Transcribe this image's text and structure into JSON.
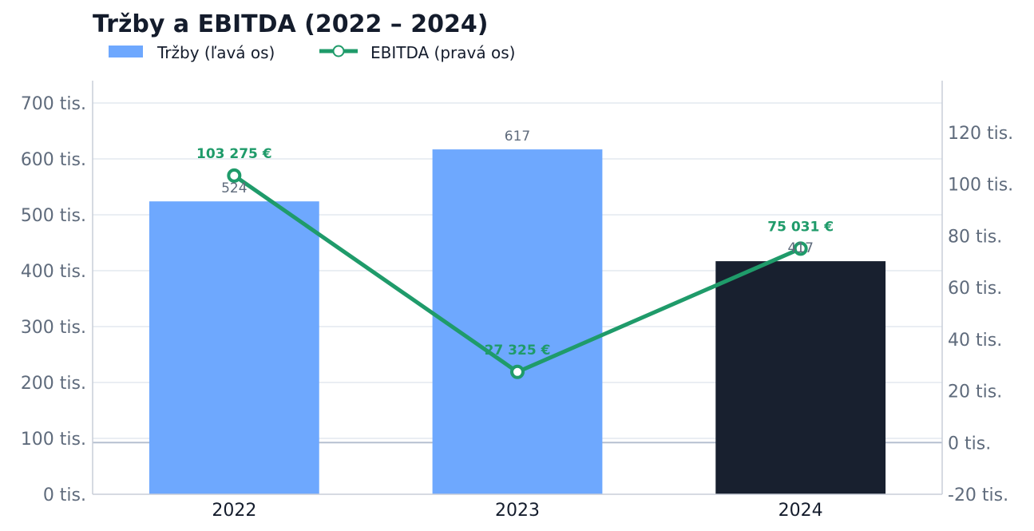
{
  "chart_data": {
    "type": "bar",
    "title": "Tržby a EBITDA (2022 – 2024)",
    "categories": [
      "2022",
      "2023",
      "2024"
    ],
    "series": [
      {
        "name": "Tržby (ľavá os)",
        "type": "bar",
        "axis": "left",
        "values": [
          524000,
          617000,
          417000
        ],
        "data_labels": [
          "524",
          "617",
          "417"
        ],
        "colors": [
          "#6ea8fe",
          "#6ea8fe",
          "#18202f"
        ]
      },
      {
        "name": "EBITDA (pravá os)",
        "type": "line",
        "axis": "right",
        "values": [
          103275,
          27325,
          75031
        ],
        "data_labels": [
          "103 275 €",
          "27 325 €",
          "75 031 €"
        ],
        "color": "#1f9b6a"
      }
    ],
    "y_left": {
      "ylim": [
        0,
        740000
      ],
      "ticks": [
        0,
        100000,
        200000,
        300000,
        400000,
        500000,
        600000,
        700000
      ],
      "tick_labels": [
        "0 tis.",
        "100 tis.",
        "200 tis.",
        "300 tis.",
        "400 tis.",
        "500 tis.",
        "600 tis.",
        "700 tis."
      ]
    },
    "y_right": {
      "ylim": [
        -20000,
        140000
      ],
      "ticks": [
        -20000,
        0,
        20000,
        40000,
        60000,
        80000,
        100000,
        120000
      ],
      "tick_labels": [
        "-20 tis.",
        "0 tis.",
        "20 tis.",
        "40 tis.",
        "60 tis.",
        "80 tis.",
        "100 tis.",
        "120 tis."
      ]
    },
    "grid": true,
    "zero_line_right": true,
    "legend": "top-left"
  }
}
